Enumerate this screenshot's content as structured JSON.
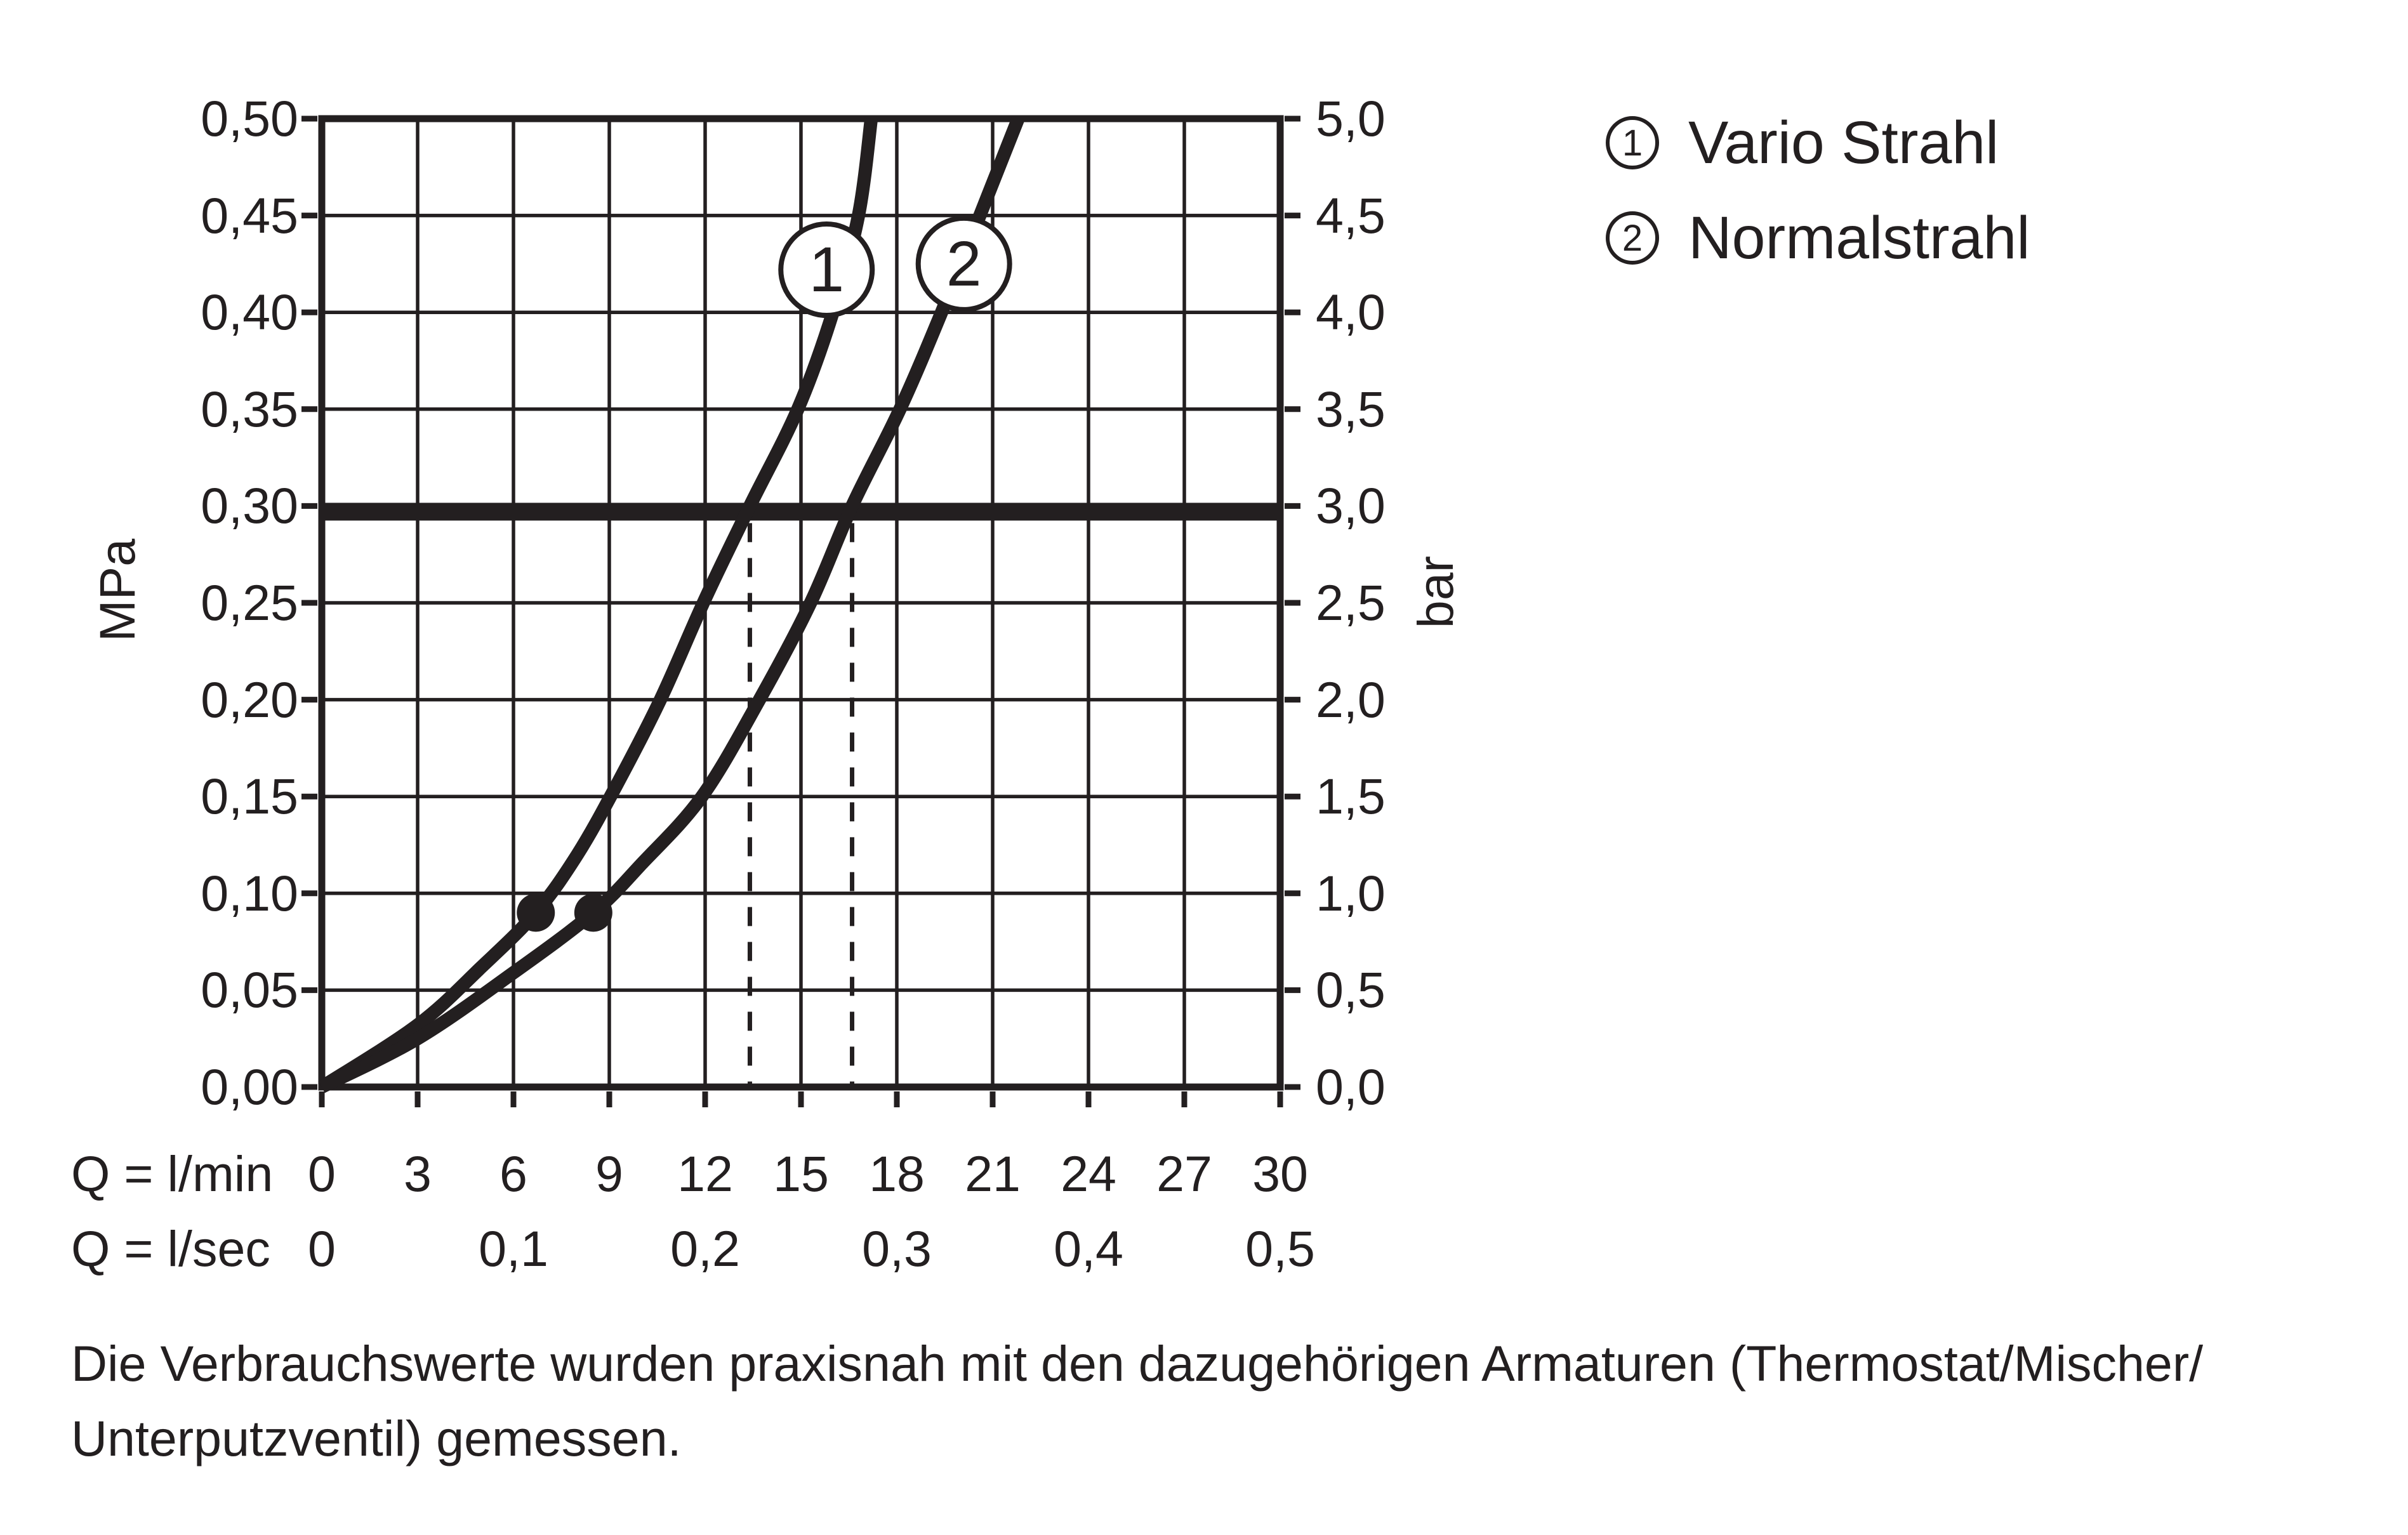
{
  "page": {
    "background": "#ffffff",
    "ink": "#231f20"
  },
  "legend": {
    "items": [
      {
        "symbol": "1",
        "label": "Vario Strahl"
      },
      {
        "symbol": "2",
        "label": "Normalstrahl"
      }
    ]
  },
  "axes": {
    "left": {
      "unit": "MPa",
      "ticks": [
        "0,50",
        "0,45",
        "0,40",
        "0,35",
        "0,30",
        "0,25",
        "0,20",
        "0,15",
        "0,10",
        "0,05",
        "0,00"
      ]
    },
    "right": {
      "unit": "bar",
      "ticks": [
        "5,0",
        "4,5",
        "4,0",
        "3,5",
        "3,0",
        "2,5",
        "2,0",
        "1,5",
        "1,0",
        "0,5",
        "0,0"
      ]
    },
    "bottom_lmin": {
      "label": "Q = l/min",
      "ticks": [
        "0",
        "3",
        "6",
        "9",
        "12",
        "15",
        "18",
        "21",
        "24",
        "27",
        "30"
      ]
    },
    "bottom_lsec": {
      "label": "Q = l/sec",
      "ticks": [
        "0",
        "0,1",
        "0,2",
        "0,3",
        "0,4",
        "0,5"
      ]
    }
  },
  "footnote": {
    "line1": "Die Verbrauchswerte wurden praxisnah mit den dazugehörigen Armaturen (Thermostat/Mischer/",
    "line2": "Unterputzventil) gemessen."
  },
  "chart_data": {
    "type": "line",
    "title": "",
    "xlabel": "Q (l/min)",
    "xlabel_secondary": "Q (l/sec)",
    "ylabel_left": "MPa",
    "ylabel_right": "bar",
    "xlim": [
      0,
      30
    ],
    "ylim": [
      0,
      0.5
    ],
    "x_step": 3,
    "y_step": 0.05,
    "y_right_factor": 10,
    "grid": true,
    "legend_position": "top-right",
    "reference_line_y": 0.3,
    "drop_lines_x": [
      13.4,
      16.6
    ],
    "series": [
      {
        "name": "Vario Strahl",
        "callout": "1",
        "callout_at": {
          "x": 15.8,
          "y": 0.422
        },
        "marker_at": {
          "x": 6.7,
          "y": 0.09
        },
        "flow_at_3bar_lmin": 13.4,
        "points": [
          [
            0,
            0
          ],
          [
            3,
            0.032
          ],
          [
            5,
            0.062
          ],
          [
            6.7,
            0.09
          ],
          [
            8,
            0.12
          ],
          [
            9.2,
            0.155
          ],
          [
            10.6,
            0.2
          ],
          [
            12,
            0.252
          ],
          [
            13.4,
            0.3
          ],
          [
            14.9,
            0.35
          ],
          [
            16.0,
            0.4
          ],
          [
            16.8,
            0.45
          ],
          [
            17.2,
            0.5
          ]
        ]
      },
      {
        "name": "Normalstrahl",
        "callout": "2",
        "callout_at": {
          "x": 20.1,
          "y": 0.425
        },
        "marker_at": {
          "x": 8.5,
          "y": 0.09
        },
        "flow_at_3bar_lmin": 16.6,
        "points": [
          [
            0,
            0
          ],
          [
            3,
            0.025
          ],
          [
            6,
            0.059
          ],
          [
            8.5,
            0.09
          ],
          [
            10,
            0.115
          ],
          [
            11.9,
            0.15
          ],
          [
            13.7,
            0.2
          ],
          [
            15.3,
            0.25
          ],
          [
            16.6,
            0.3
          ],
          [
            18.1,
            0.35
          ],
          [
            19.4,
            0.4
          ],
          [
            20.6,
            0.45
          ],
          [
            21.8,
            0.5
          ]
        ]
      }
    ]
  }
}
